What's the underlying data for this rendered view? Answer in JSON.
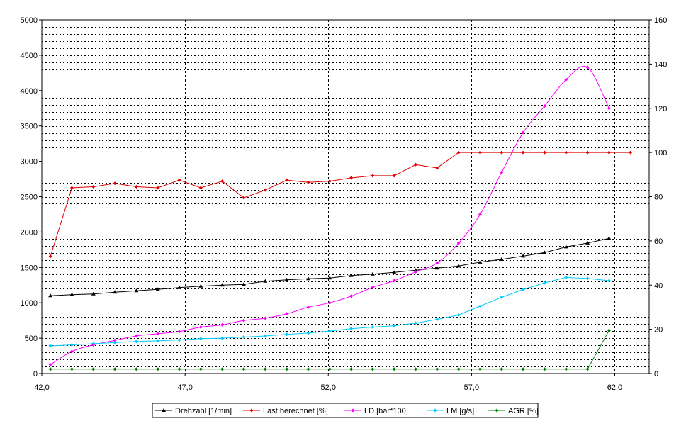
{
  "chart_data": {
    "type": "line",
    "x_ticks": [
      "42,0",
      "47,0",
      "52,0",
      "57,0",
      "62,0"
    ],
    "x_tick_values": [
      42,
      47,
      52,
      57,
      62
    ],
    "xlim": [
      42,
      63.2
    ],
    "y_left_ticks": [
      "0",
      "500",
      "1000",
      "1500",
      "2000",
      "2500",
      "3000",
      "3500",
      "4000",
      "4500",
      "5000"
    ],
    "y_left_lim": [
      0,
      5000
    ],
    "y_right_ticks": [
      "0",
      "20",
      "40",
      "60",
      "80",
      "100",
      "120",
      "140",
      "160"
    ],
    "y_right_lim": [
      0,
      160
    ],
    "grid": true,
    "legend_position": "bottom",
    "x": [
      42.3,
      43.05,
      43.8,
      44.55,
      45.3,
      46.05,
      46.8,
      47.55,
      48.3,
      49.05,
      49.8,
      50.55,
      51.3,
      52.05,
      52.8,
      53.55,
      54.3,
      55.05,
      55.8,
      56.55,
      57.3,
      58.05,
      58.8,
      59.55,
      60.3,
      61.05,
      61.8,
      62.55
    ],
    "series": [
      {
        "name": "Drehzahl [1/min]",
        "axis": "left",
        "color": "#000000",
        "marker": "triangle",
        "values": [
          1100,
          1115,
          1125,
          1150,
          1170,
          1190,
          1215,
          1235,
          1250,
          1260,
          1305,
          1325,
          1340,
          1350,
          1385,
          1405,
          1430,
          1460,
          1490,
          1520,
          1575,
          1615,
          1660,
          1710,
          1790,
          1845,
          1910,
          null
        ]
      },
      {
        "name": "Last berechnet [%]",
        "axis": "right",
        "color": "#e00000",
        "marker": "diamond",
        "values": [
          53,
          84,
          84.5,
          86,
          84.5,
          84,
          87.5,
          84,
          87,
          79.5,
          83,
          87.5,
          86.5,
          87,
          88.5,
          89.5,
          89.5,
          94.5,
          93,
          100,
          100,
          100,
          100,
          100,
          100,
          100,
          100,
          100
        ]
      },
      {
        "name": "LD [bar*100]",
        "axis": "right",
        "color": "#ff00ff",
        "marker": "diamond",
        "values": [
          4,
          10,
          13,
          15,
          17,
          18,
          19,
          21,
          22,
          24,
          25,
          27,
          30,
          32,
          35,
          39,
          42,
          46,
          50,
          59,
          72,
          91,
          109,
          121,
          133,
          138.5,
          120,
          null
        ]
      },
      {
        "name": "LM [g/s]",
        "axis": "right",
        "color": "#00ccff",
        "marker": "diamond",
        "values": [
          12.5,
          13,
          13.5,
          14,
          14.5,
          14.8,
          15.2,
          15.8,
          16,
          16.5,
          17,
          17.7,
          18.3,
          19.2,
          20.3,
          21,
          21.6,
          22.8,
          24.5,
          26.5,
          30.5,
          34.5,
          38,
          41,
          43.5,
          43,
          42,
          null
        ]
      },
      {
        "name": "AGR [%]",
        "axis": "right",
        "color": "#008000",
        "marker": "diamond",
        "values": [
          2,
          2,
          2,
          2,
          2,
          2,
          2,
          2,
          2,
          2,
          2,
          2,
          2,
          2,
          2,
          2,
          2,
          2,
          2,
          2,
          2,
          2,
          2,
          2,
          2,
          2,
          19.5,
          null
        ]
      }
    ]
  }
}
